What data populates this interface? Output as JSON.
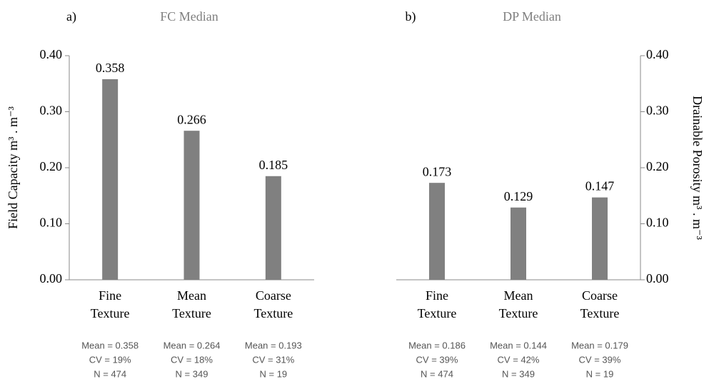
{
  "chart_data": [
    {
      "type": "bar",
      "panel": "a)",
      "title": "FC Median",
      "y_label": "Field Capacity m³ . m⁻³",
      "y_axis_side": "left",
      "categories": [
        "Fine Texture",
        "Mean Texture",
        "Coarse Texture"
      ],
      "values": [
        0.358,
        0.266,
        0.185
      ],
      "color": "#808080",
      "notes": [
        [
          "Mean = 0.358",
          "CV = 19%",
          "N = 474"
        ],
        [
          "Mean = 0.264",
          "CV = 18%",
          "N = 349"
        ],
        [
          "Mean = 0.193",
          "CV = 31%",
          "N = 19"
        ]
      ],
      "ylim": [
        0,
        0.4
      ],
      "yticks": [
        {
          "value": 0,
          "label": "0.00"
        },
        {
          "value": 0.1,
          "label": "0.10"
        },
        {
          "value": 0.2,
          "label": "0.20"
        },
        {
          "value": 0.3,
          "label": "0.30"
        },
        {
          "value": 0.4,
          "label": "0.40"
        }
      ]
    },
    {
      "type": "bar",
      "panel": "b)",
      "title": "DP Median",
      "y_label": "Drainable Porosity m³ . m⁻³",
      "y_axis_side": "right",
      "categories": [
        "Fine Texture",
        "Mean Texture",
        "Coarse Texture"
      ],
      "values": [
        0.173,
        0.129,
        0.147
      ],
      "color": "#808080",
      "notes": [
        [
          "Mean = 0.186",
          "CV = 39%",
          "N = 474"
        ],
        [
          "Mean = 0.144",
          "CV = 42%",
          "N = 349"
        ],
        [
          "Mean = 0.179",
          "CV = 39%",
          "N = 19"
        ]
      ],
      "ylim": [
        0,
        0.4
      ],
      "yticks": [
        {
          "value": 0,
          "label": "0.00"
        },
        {
          "value": 0.1,
          "label": "0.10"
        },
        {
          "value": 0.2,
          "label": "0.20"
        },
        {
          "value": 0.3,
          "label": "0.30"
        },
        {
          "value": 0.4,
          "label": "0.40"
        }
      ]
    }
  ]
}
